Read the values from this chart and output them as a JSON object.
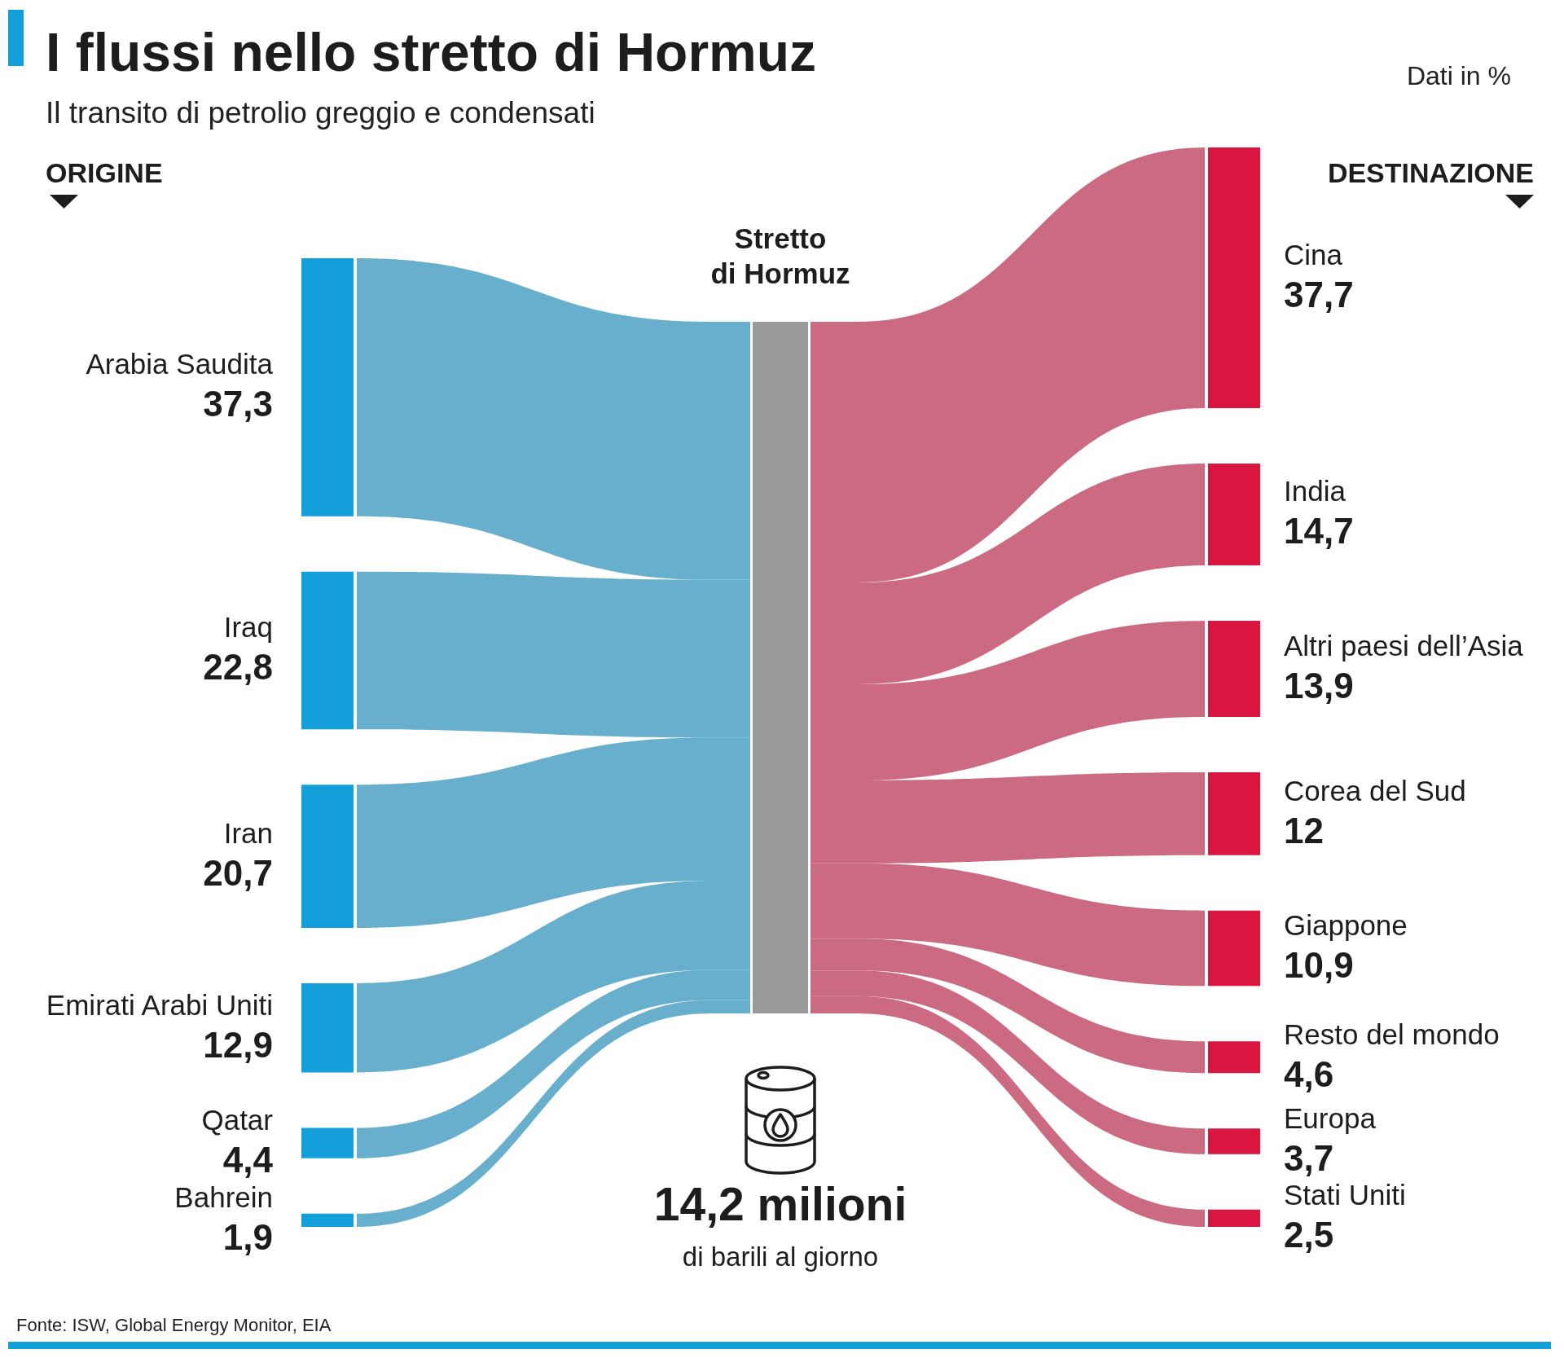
{
  "chart_data": {
    "type": "other",
    "title": "I flussi nello stretto di Hormuz",
    "subtitle": "Il transito di petrolio greggio e condensati",
    "categories": [
      "Arabia Saudita",
      "Iraq",
      "Iran",
      "Emirati Arabi Uniti",
      "Qatar",
      "Bahrein",
      "Cina",
      "India",
      "Altri paesi dell’Asia",
      "Corea del Sud",
      "Giappone",
      "Resto del mondo",
      "Europa",
      "Stati Uniti"
    ],
    "series": [
      {
        "color": "#139fda",
        "values": [
          37.3,
          22.8,
          20.7,
          12.9,
          4.4,
          1.9,
          null,
          null,
          null,
          null,
          null,
          null,
          null,
          null
        ],
        "value_labels": [
          "37,3",
          "22,8",
          "20,7",
          "12,9",
          "4,4",
          "1,9",
          null,
          null,
          null,
          null,
          null,
          null,
          null,
          null
        ]
      },
      {
        "color": "#d8163f",
        "values": [
          null,
          null,
          null,
          null,
          null,
          null,
          37.7,
          14.7,
          13.9,
          12,
          10.9,
          4.6,
          3.7,
          2.5
        ],
        "value_labels": [
          null,
          null,
          null,
          null,
          null,
          null,
          "37,7",
          "14,7",
          "13,9",
          "12",
          "10,9",
          "4,6",
          "3,7",
          "2,5"
        ]
      }
    ],
    "annotations": [
      "Dati in %",
      "ORIGINE",
      "DESTINAZIONE",
      "Stretto\ndi Hormuz",
      "14,2 milioni",
      "di barili al giorno",
      "Fonte: ISW, Global Energy Monitor, EIA"
    ]
  }
}
